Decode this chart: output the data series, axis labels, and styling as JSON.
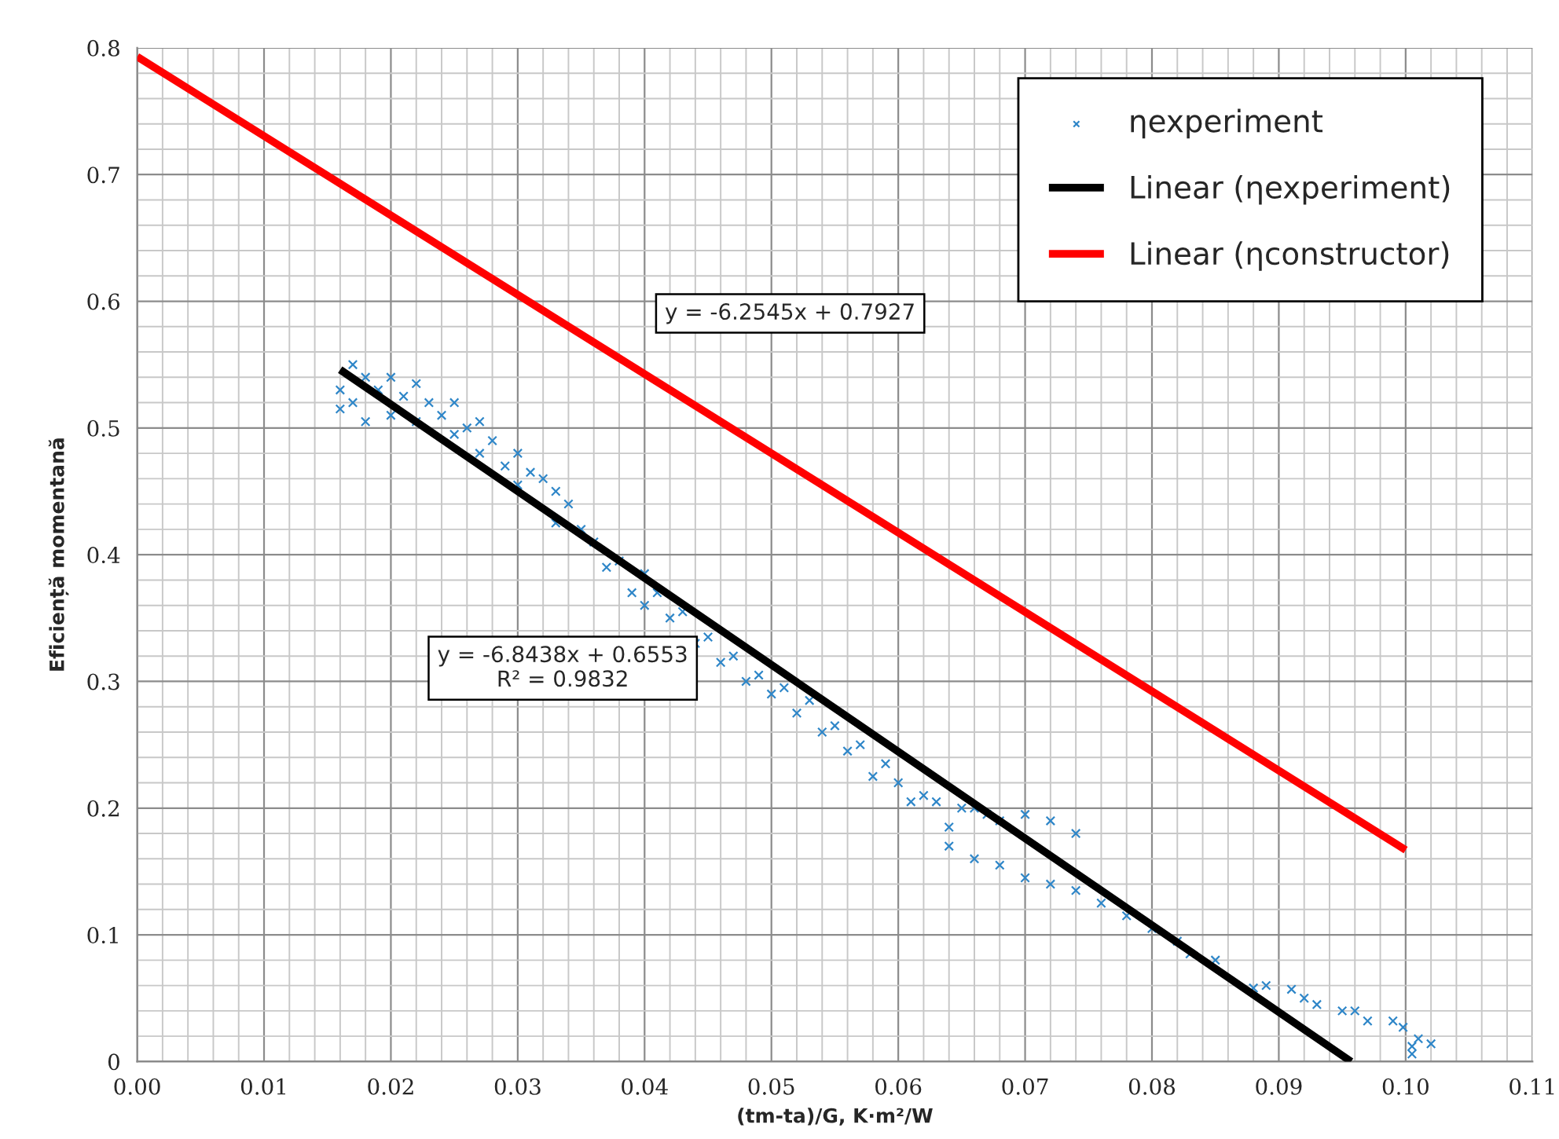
{
  "chart_data": {
    "type": "scatter",
    "xlabel": "(tm-ta)/G, K·m²/W",
    "ylabel": "Eficiență momentană",
    "xlim": [
      0,
      0.11
    ],
    "ylim": [
      0,
      0.8
    ],
    "xticks": [
      {
        "value": 0,
        "label": "0.00"
      },
      {
        "value": 0.01,
        "label": "0.01"
      },
      {
        "value": 0.02,
        "label": "0.02"
      },
      {
        "value": 0.03,
        "label": "0.03"
      },
      {
        "value": 0.04,
        "label": "0.04"
      },
      {
        "value": 0.05,
        "label": "0.05"
      },
      {
        "value": 0.06,
        "label": "0.06"
      },
      {
        "value": 0.07,
        "label": "0.07"
      },
      {
        "value": 0.08,
        "label": "0.08"
      },
      {
        "value": 0.09,
        "label": "0.09"
      },
      {
        "value": 0.1,
        "label": "0.10"
      },
      {
        "value": 0.11,
        "label": "0.11"
      }
    ],
    "yticks": [
      0,
      0.1,
      0.2,
      0.3,
      0.4,
      0.5,
      0.6,
      0.7,
      0.8
    ],
    "grid": true,
    "legend": "top right",
    "series": [
      {
        "name": "ηexperiment",
        "marker": "cross",
        "color": "#2e86c8",
        "x": [
          0.016,
          0.016,
          0.017,
          0.017,
          0.018,
          0.018,
          0.019,
          0.02,
          0.02,
          0.021,
          0.022,
          0.022,
          0.023,
          0.024,
          0.025,
          0.025,
          0.026,
          0.027,
          0.027,
          0.028,
          0.029,
          0.03,
          0.03,
          0.031,
          0.032,
          0.033,
          0.033,
          0.034,
          0.035,
          0.036,
          0.037,
          0.038,
          0.039,
          0.04,
          0.04,
          0.041,
          0.042,
          0.043,
          0.044,
          0.045,
          0.046,
          0.047,
          0.048,
          0.049,
          0.05,
          0.051,
          0.052,
          0.053,
          0.054,
          0.055,
          0.056,
          0.057,
          0.058,
          0.059,
          0.06,
          0.061,
          0.062,
          0.063,
          0.064,
          0.065,
          0.066,
          0.067,
          0.068,
          0.07,
          0.072,
          0.074,
          0.064,
          0.066,
          0.068,
          0.07,
          0.072,
          0.074,
          0.076,
          0.078,
          0.08,
          0.082,
          0.083,
          0.085,
          0.088,
          0.089,
          0.091,
          0.092,
          0.093,
          0.095,
          0.096,
          0.097,
          0.099,
          0.0998,
          0.1005,
          0.1005,
          0.101,
          0.102
        ],
        "values": [
          0.53,
          0.515,
          0.55,
          0.52,
          0.54,
          0.505,
          0.53,
          0.54,
          0.51,
          0.525,
          0.535,
          0.505,
          0.52,
          0.51,
          0.52,
          0.495,
          0.5,
          0.505,
          0.48,
          0.49,
          0.47,
          0.48,
          0.455,
          0.465,
          0.46,
          0.45,
          0.425,
          0.44,
          0.42,
          0.41,
          0.39,
          0.395,
          0.37,
          0.385,
          0.36,
          0.37,
          0.35,
          0.355,
          0.33,
          0.335,
          0.315,
          0.32,
          0.3,
          0.305,
          0.29,
          0.295,
          0.275,
          0.285,
          0.26,
          0.265,
          0.245,
          0.25,
          0.225,
          0.235,
          0.22,
          0.205,
          0.21,
          0.205,
          0.185,
          0.2,
          0.2,
          0.195,
          0.19,
          0.195,
          0.19,
          0.18,
          0.17,
          0.16,
          0.155,
          0.145,
          0.14,
          0.135,
          0.125,
          0.115,
          0.105,
          0.095,
          0.085,
          0.08,
          0.058,
          0.06,
          0.057,
          0.05,
          0.045,
          0.04,
          0.04,
          0.032,
          0.032,
          0.027,
          0.012,
          0.006,
          0.018,
          0.014
        ]
      },
      {
        "name": "Linear (ηexperiment)",
        "type": "line",
        "color": "#000000",
        "x": [
          0.016,
          0.0957
        ],
        "values": [
          0.546,
          0.0
        ]
      },
      {
        "name": "Linear (ηconstructor)",
        "type": "line",
        "color": "#ff0000",
        "x": [
          0.0,
          0.1
        ],
        "values": [
          0.793,
          0.167
        ]
      }
    ],
    "annotations": [
      "y = -6.2545x + 0.7927",
      "y = -6.8438x + 0.6553\nR² = 0.9832"
    ]
  }
}
